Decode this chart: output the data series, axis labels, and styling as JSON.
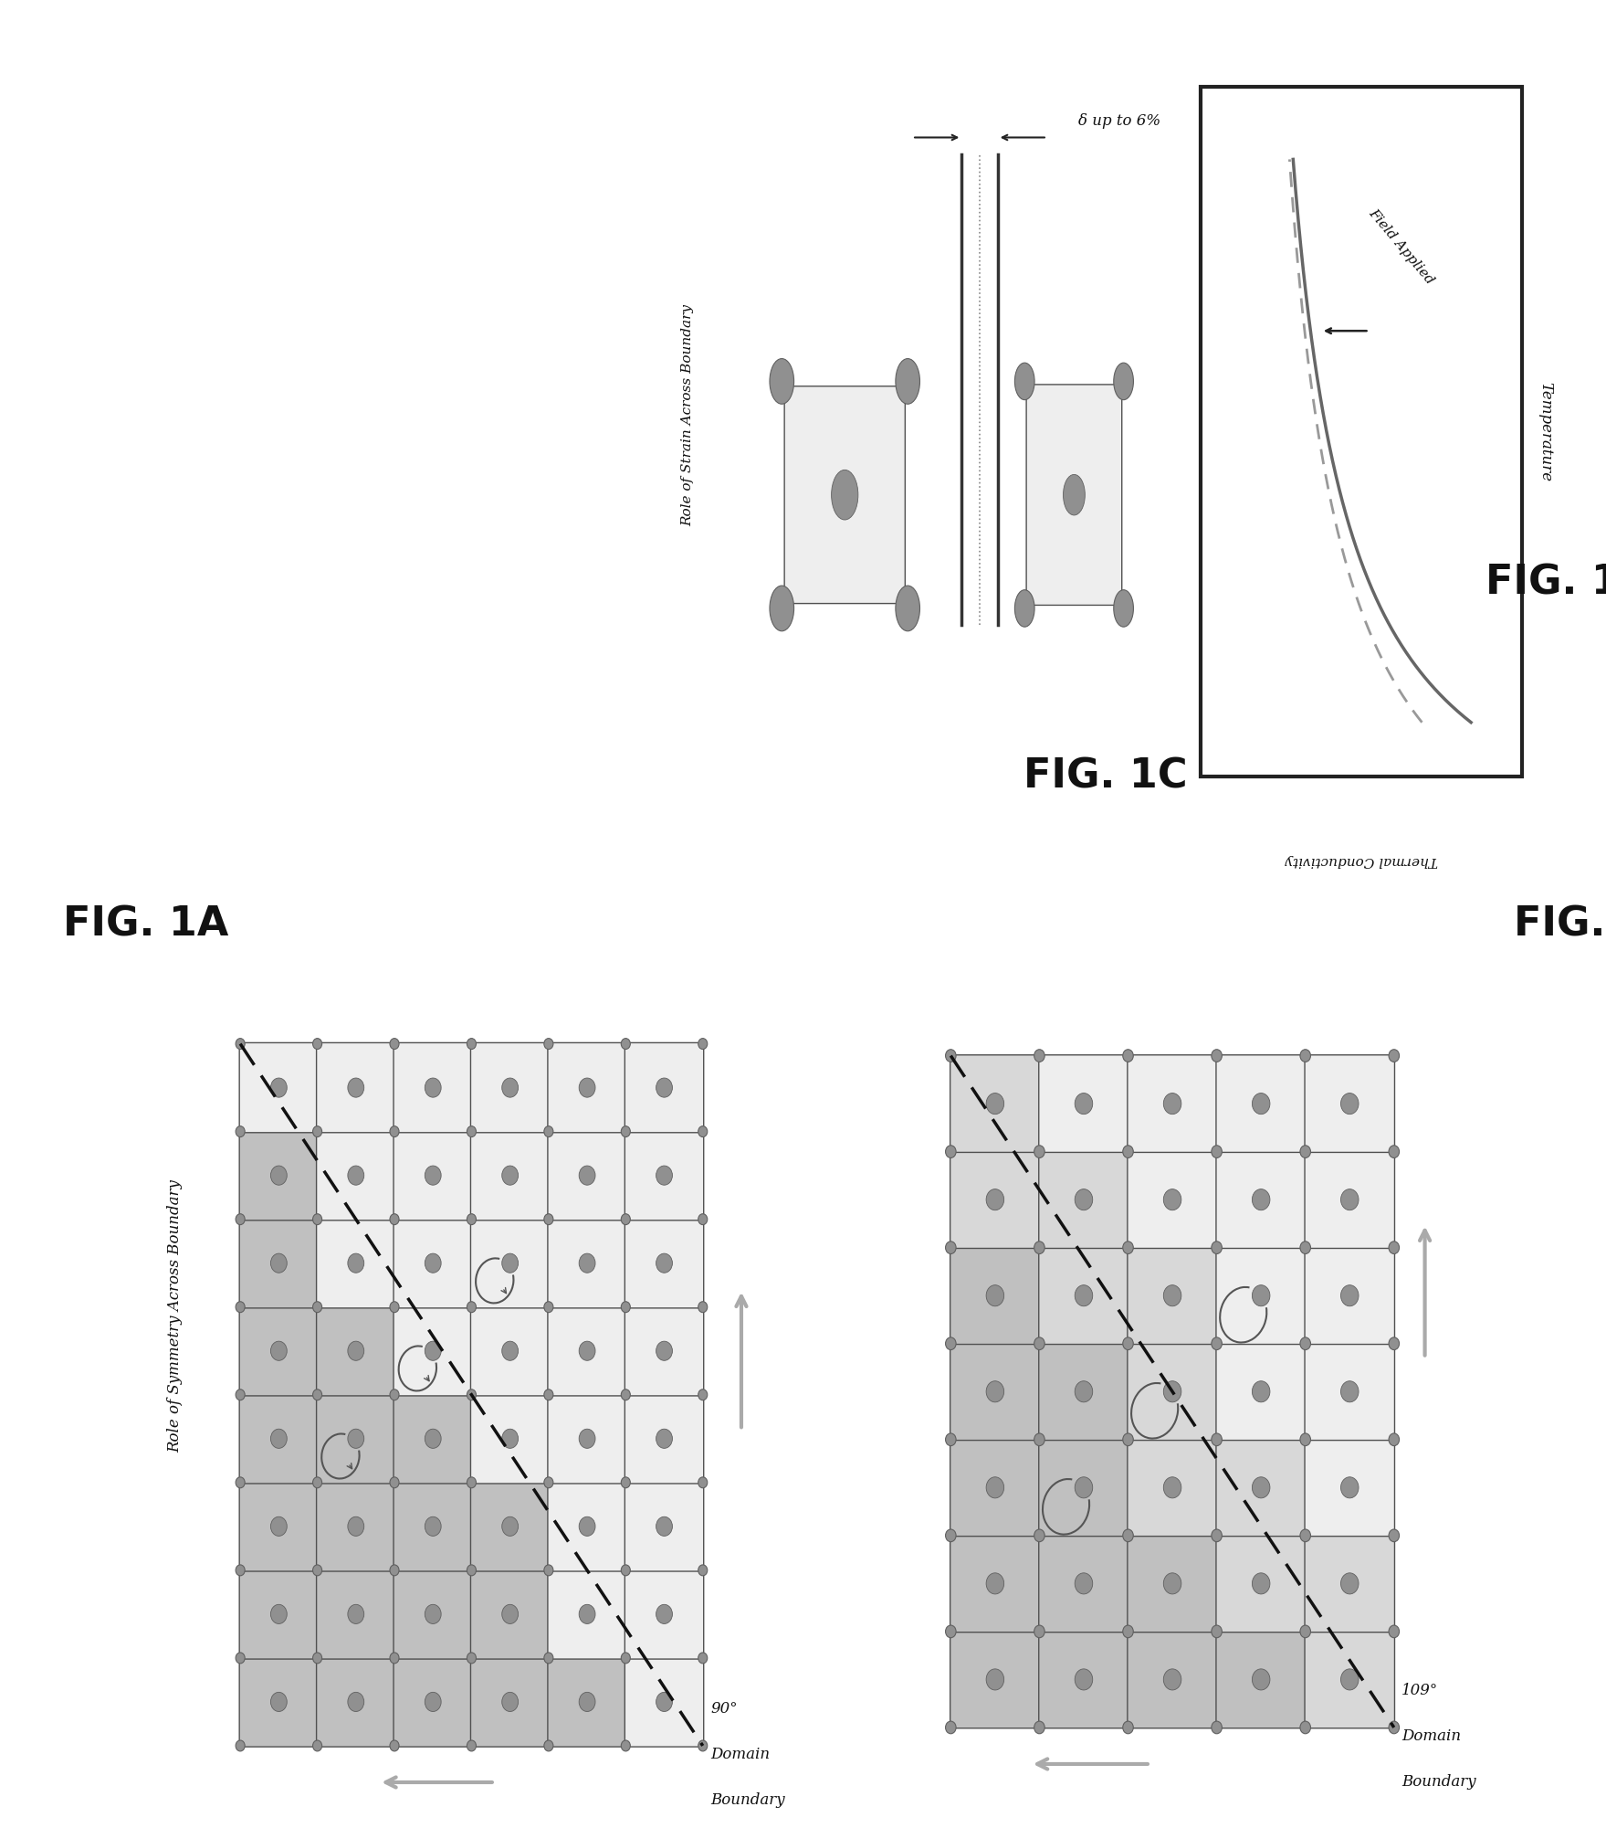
{
  "fig_width": 17.59,
  "fig_height": 20.01,
  "bg_color": "#ffffff",
  "panel_label_fontsize": 32,
  "fig1A_title": "Role of Symmetry Across Boundary",
  "fig1B_angle_label": "109°",
  "fig1B_domain_label": "Domain\nBoundary",
  "fig1A_angle_label": "90°",
  "fig1A_domain_label": "Domain\nBoundary",
  "fig1C_title": "Role of Strain Across Boundary",
  "fig1C_delta": "δ up to 6%",
  "fig1D_xlabel": "Temperature",
  "fig1D_ylabel": "Thermal Conductivity",
  "fig1D_annotation": "Field Applied",
  "cell_color_light": "#eeeeee",
  "cell_color_shade": "#c0c0c0",
  "cell_color_mid": "#d8d8d8",
  "atom_color": "#909090",
  "atom_edge_color": "#606060",
  "grid_edge_color": "#505050",
  "arrow_gray": "#aaaaaa",
  "boundary_dash_color": "#111111",
  "text_color": "#111111",
  "curve_solid_color": "#666666",
  "curve_dash_color": "#999999"
}
